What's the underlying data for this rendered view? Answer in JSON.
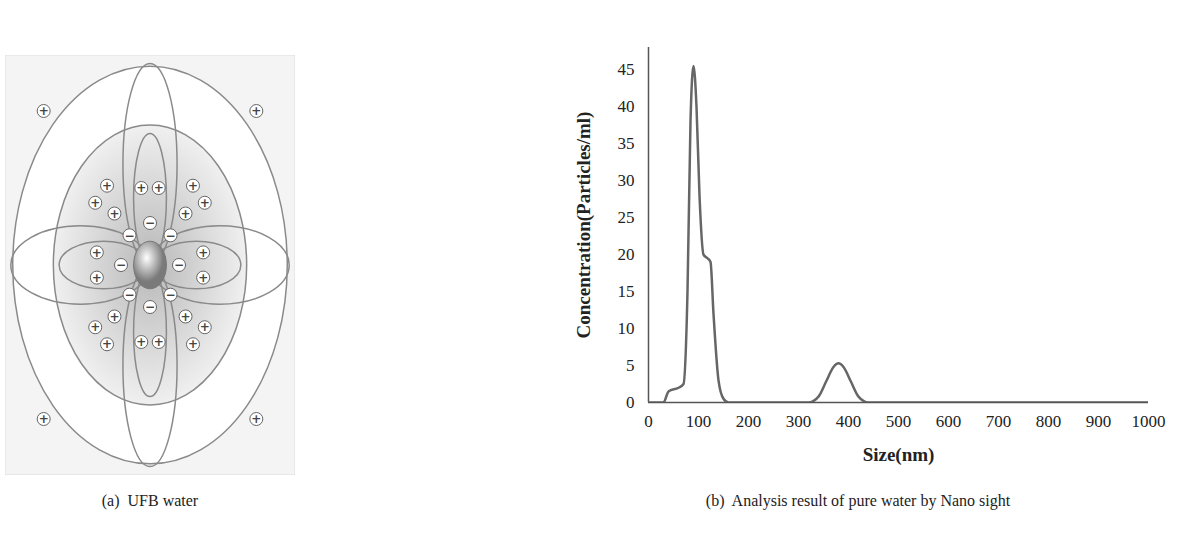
{
  "diagram": {
    "caption": "(a)  UFB water",
    "ion_labels": {
      "positive": "+",
      "negative": "−"
    }
  },
  "chart_data": {
    "type": "line",
    "caption": "(b)  Analysis result of pure water by Nano sight",
    "x_label": "Size(nm)",
    "y_label": "Concentration(Particles/ml)",
    "x": [
      0,
      30,
      40,
      60,
      70,
      78,
      84,
      90,
      96,
      102,
      110,
      118,
      124,
      130,
      140,
      150,
      160,
      320,
      340,
      355,
      370,
      380,
      390,
      405,
      420,
      440,
      1000
    ],
    "values": [
      0,
      0,
      1.5,
      2,
      2.5,
      15,
      38,
      45.5,
      40,
      28,
      20,
      19.5,
      19,
      12,
      3,
      0.5,
      0,
      0,
      0.8,
      2.8,
      4.8,
      5.3,
      4.8,
      2.8,
      0.8,
      0,
      0
    ],
    "color": "#666666",
    "xlim": [
      0,
      1000
    ],
    "xticks": [
      0,
      100,
      200,
      300,
      400,
      500,
      600,
      700,
      800,
      900,
      1000
    ],
    "ylim": [
      0,
      48
    ],
    "yticks": [
      0,
      5,
      10,
      15,
      20,
      25,
      30,
      35,
      40,
      45
    ],
    "grid": false
  }
}
